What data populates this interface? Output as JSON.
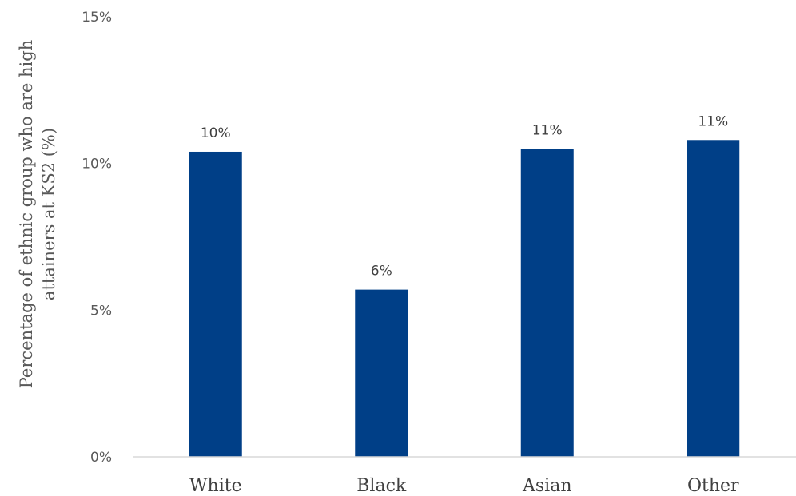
{
  "chart_data": {
    "type": "bar",
    "categories": [
      "White",
      "Black",
      "Asian",
      "Other"
    ],
    "values": [
      10.4,
      5.7,
      10.5,
      10.8
    ],
    "data_labels": [
      "10%",
      "6%",
      "11%",
      "11%"
    ],
    "title": "",
    "xlabel": "",
    "ylabel_lines": [
      "Percentage of ethnic group who are high",
      "attainers at KS2 (%)"
    ],
    "ylim": [
      0,
      15
    ],
    "yticks": [
      0,
      5,
      10,
      15
    ],
    "ytick_labels": [
      "0%",
      "5%",
      "10%",
      "15%"
    ],
    "grid": false,
    "legend": "none",
    "bar_color": "#003f87",
    "axis_color": "#d9d9d9"
  }
}
